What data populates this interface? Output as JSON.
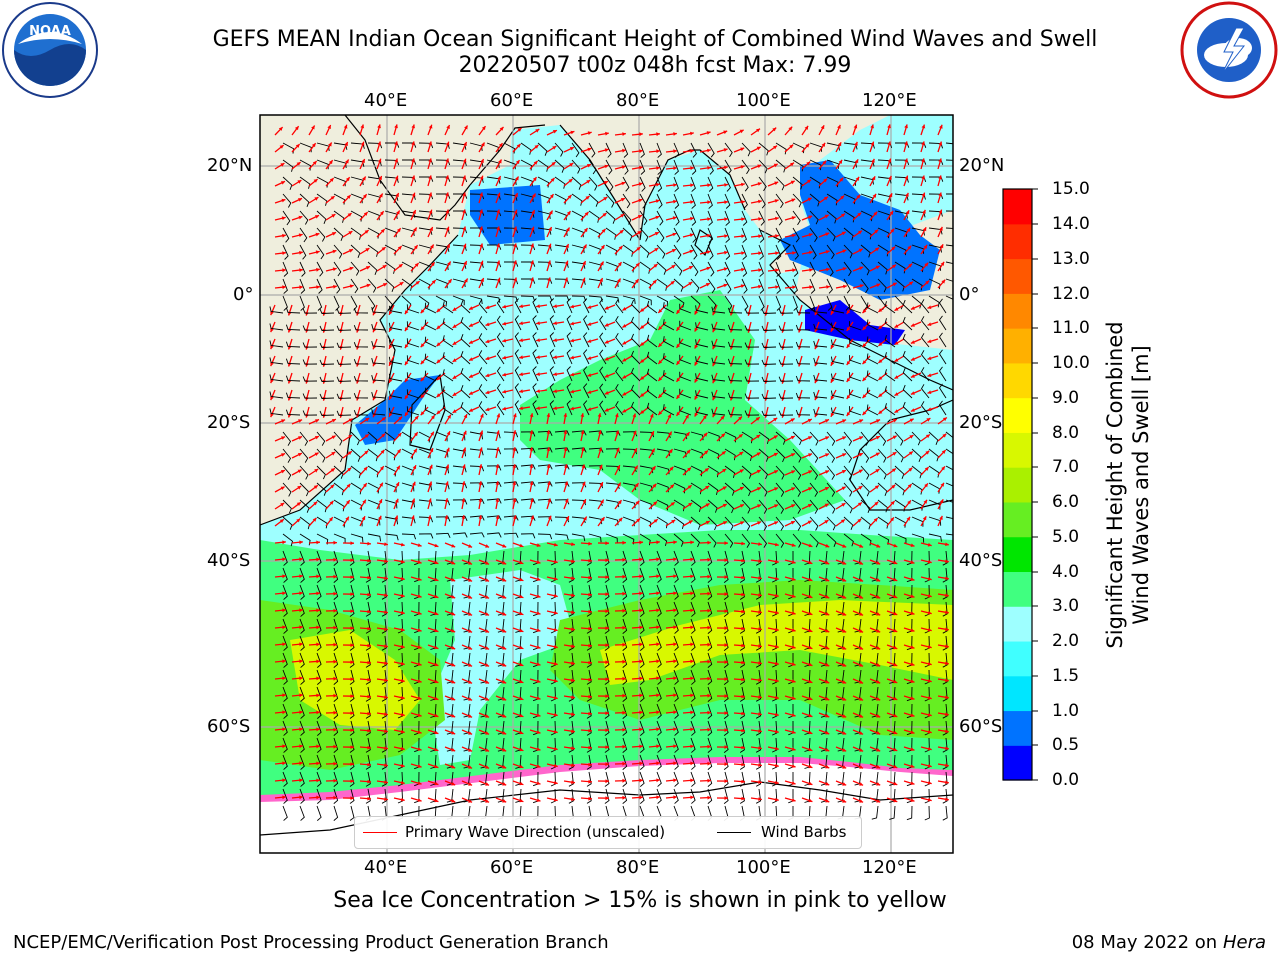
{
  "title": {
    "line1": "GEFS MEAN Indian Ocean Significant Height of Combined Wind Waves and Swell",
    "line2": "20220507 t00z 048h fcst   Max: 7.99"
  },
  "logos": {
    "left": "noora-logo",
    "left_ring_text_top": "NATIONAL OCEANIC AND ATMOSPHERIC ADMINISTRATION",
    "left_ring_text_bottom": "U.S. DEPARTMENT OF COMMERCE",
    "left_center_text": "NOAA",
    "right": "nws-logo",
    "right_ring_text": "NATIONAL WEATHER SERVICE"
  },
  "axes": {
    "lon_top": [
      "40°E",
      "60°E",
      "80°E",
      "100°E",
      "120°E"
    ],
    "lon_bottom": [
      "40°E",
      "60°E",
      "80°E",
      "100°E",
      "120°E"
    ],
    "lat_left": [
      "20°N",
      "0°",
      "20°S",
      "40°S",
      "60°S"
    ],
    "lat_right": [
      "20°N",
      "0°",
      "20°S",
      "40°S",
      "60°S"
    ]
  },
  "colorbar": {
    "label_line1": "Significant Height of Combined",
    "label_line2": "Wind Waves and Swell [m]",
    "ticks": [
      "15.0",
      "14.0",
      "13.0",
      "12.0",
      "11.0",
      "10.0",
      "9.0",
      "8.0",
      "7.0",
      "6.0",
      "5.0",
      "4.0",
      "3.0",
      "2.0",
      "1.5",
      "1.0",
      "0.5",
      "0.0"
    ],
    "colors": [
      "#0000ff",
      "#0073ff",
      "#00e6ff",
      "#40ffff",
      "#9effff",
      "#40ff80",
      "#00e600",
      "#66ee22",
      "#aaf000",
      "#d8f800",
      "#ffff00",
      "#ffd800",
      "#ffb000",
      "#ff8800",
      "#ff5800",
      "#ff2d00",
      "#ff0000"
    ]
  },
  "legend": {
    "wave_direction": "Primary Wave Direction (unscaled)",
    "wind_barbs": "Wind Barbs",
    "wave_color": "#ff0000",
    "barb_color": "#000000"
  },
  "caption": "Sea Ice Concentration > 15% is shown in pink to yellow",
  "footer": {
    "left": "NCEP/EMC/Verification Post Processing Product Generation Branch",
    "right_date": "08 May 2022 on",
    "right_host": "Hera"
  },
  "colors": {
    "land": "#efeedd",
    "ocean_low": "#9effff",
    "ocean_mid": "#40ff80",
    "ocean_high": "#ffff00",
    "sea_ice": "#ffffff",
    "grid": "#aaaaaa"
  }
}
